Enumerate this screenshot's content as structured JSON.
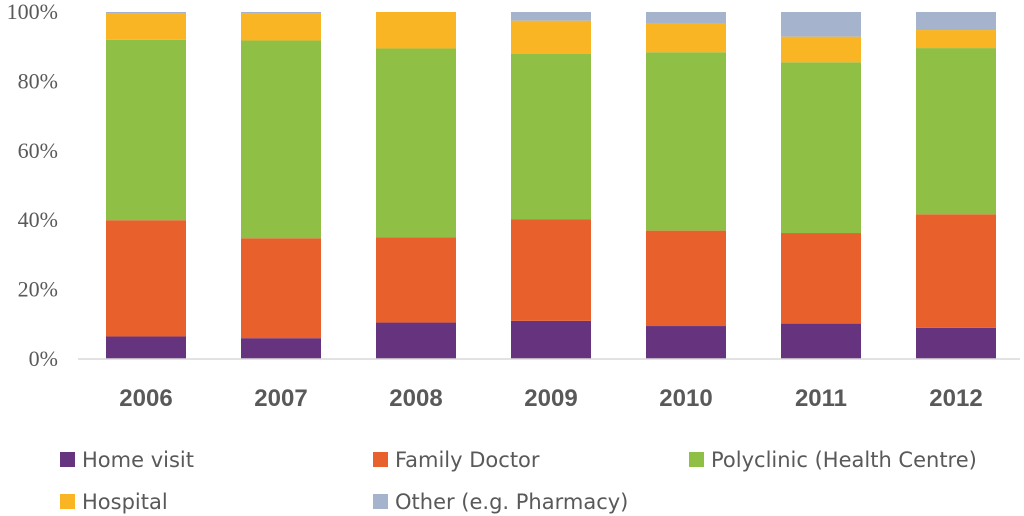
{
  "chart_data": {
    "type": "bar",
    "stacked": true,
    "percent": true,
    "categories": [
      "2006",
      "2007",
      "2008",
      "2009",
      "2010",
      "2011",
      "2012"
    ],
    "series": [
      {
        "name": "Home visit",
        "color": "#66347f",
        "values": [
          6.5,
          6,
          10.5,
          11,
          9.5,
          10.2,
          9
        ]
      },
      {
        "name": "Family Doctor",
        "color": "#e8602c",
        "values": [
          33.5,
          28.8,
          24.5,
          29.2,
          27.5,
          26.1,
          32.7
        ]
      },
      {
        "name": "Polyclinic (Health Centre)",
        "color": "#8fbf45",
        "values": [
          52,
          57,
          54.5,
          47.8,
          51.4,
          49.2,
          47.9
        ]
      },
      {
        "name": "Hospital",
        "color": "#f9b524",
        "values": [
          7.7,
          7.9,
          10.5,
          9.5,
          8.3,
          7.4,
          5.2
        ]
      },
      {
        "name": "Other (e.g. Pharmacy)",
        "color": "#a5b4cc",
        "values": [
          0.3,
          0.3,
          0,
          2.5,
          3.3,
          7.1,
          5.2
        ]
      }
    ],
    "y_ticks": [
      "0%",
      "20%",
      "40%",
      "60%",
      "80%",
      "100%"
    ],
    "ylim": [
      0,
      100
    ],
    "grid": false,
    "legend_position": "bottom"
  }
}
